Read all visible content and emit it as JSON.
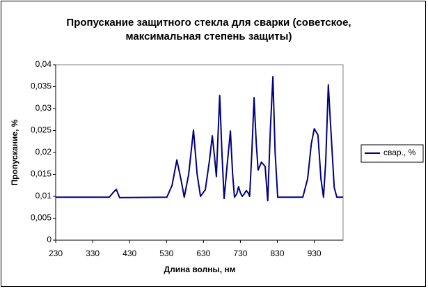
{
  "chart_data": {
    "type": "line",
    "title": [
      "Пропускание защитного стекла для сварки (советское,",
      "максимальная степень защиты)"
    ],
    "x_label": "Длина волны, нм",
    "y_label": "Пропускание, %",
    "x": [
      230,
      375,
      385,
      394,
      403,
      531,
      545,
      558,
      570,
      578,
      590,
      603,
      613,
      622,
      635,
      646,
      654,
      660,
      665,
      670,
      674,
      680,
      686,
      694,
      703,
      709,
      714,
      720,
      725,
      730,
      735,
      740,
      746,
      751,
      755,
      761,
      767,
      773,
      778,
      787,
      797,
      804,
      811,
      818,
      824,
      831,
      899,
      912,
      922,
      930,
      940,
      948,
      955,
      961,
      968,
      975,
      984,
      991,
      1008
    ],
    "series": [
      {
        "name": "свар., %",
        "color": "#000080",
        "values": [
          0.0098,
          0.0098,
          0.0108,
          0.0116,
          0.0097,
          0.0098,
          0.0125,
          0.0183,
          0.0135,
          0.0098,
          0.015,
          0.0251,
          0.015,
          0.01,
          0.0115,
          0.018,
          0.0238,
          0.019,
          0.0145,
          0.025,
          0.033,
          0.02,
          0.0095,
          0.017,
          0.0249,
          0.015,
          0.0098,
          0.0105,
          0.0122,
          0.0108,
          0.01,
          0.0105,
          0.0113,
          0.0108,
          0.01,
          0.02,
          0.0325,
          0.022,
          0.016,
          0.0178,
          0.0168,
          0.009,
          0.025,
          0.0373,
          0.02,
          0.0098,
          0.0098,
          0.014,
          0.022,
          0.0254,
          0.024,
          0.014,
          0.0098,
          0.018,
          0.0354,
          0.025,
          0.012,
          0.0098,
          0.0098
        ]
      }
    ],
    "xlim": [
      230,
      1008
    ],
    "xticks": [
      230,
      330,
      430,
      530,
      630,
      730,
      830,
      930
    ],
    "ylim": [
      0,
      0.04
    ],
    "yticks": [
      0,
      {
        "value": 0.005,
        "label": "0,005"
      },
      {
        "value": 0.01,
        "label": "0,01"
      },
      {
        "value": 0.015,
        "label": "0,015"
      },
      {
        "value": 0.02,
        "label": "0,02"
      },
      {
        "value": 0.025,
        "label": "0,025"
      },
      {
        "value": 0.03,
        "label": "0,03"
      },
      {
        "value": 0.035,
        "label": "0,035"
      },
      {
        "value": 0.04,
        "label": "0,04"
      }
    ],
    "grid": false,
    "legend": "right"
  }
}
